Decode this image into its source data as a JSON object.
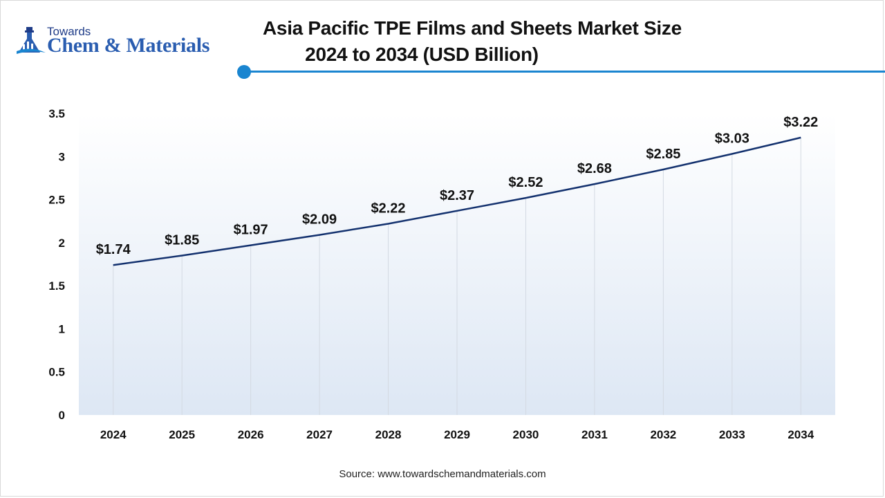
{
  "logo": {
    "line1": "Towards",
    "line2": "Chem & Materials"
  },
  "title": {
    "line1": "Asia Pacific TPE Films and Sheets Market Size",
    "line2": "2024 to 2034 (USD Billion)"
  },
  "source": "Source: www.towardschemandmaterials.com",
  "colors": {
    "accent": "#1a85d0",
    "line": "#13316e",
    "plot_gradient_top": "#ffffff",
    "plot_gradient_bottom": "#dde7f4"
  },
  "chart_data": {
    "type": "line",
    "title": "Asia Pacific TPE Films and Sheets Market Size 2024 to 2034 (USD Billion)",
    "categories": [
      "2024",
      "2025",
      "2026",
      "2027",
      "2028",
      "2029",
      "2030",
      "2031",
      "2032",
      "2033",
      "2034"
    ],
    "values": [
      1.74,
      1.85,
      1.97,
      2.09,
      2.22,
      2.37,
      2.52,
      2.68,
      2.85,
      3.03,
      3.22
    ],
    "data_labels": [
      "$1.74",
      "$1.85",
      "$1.97",
      "$2.09",
      "$2.22",
      "$2.37",
      "$2.52",
      "$2.68",
      "$2.85",
      "$3.03",
      "$3.22"
    ],
    "y_ticks": [
      "0",
      "0.5",
      "1",
      "1.5",
      "2",
      "2.5",
      "3",
      "3.5"
    ],
    "ylim": [
      0,
      3.5
    ],
    "grid": "vertical",
    "legend": "none",
    "xlabel": "",
    "ylabel": ""
  }
}
